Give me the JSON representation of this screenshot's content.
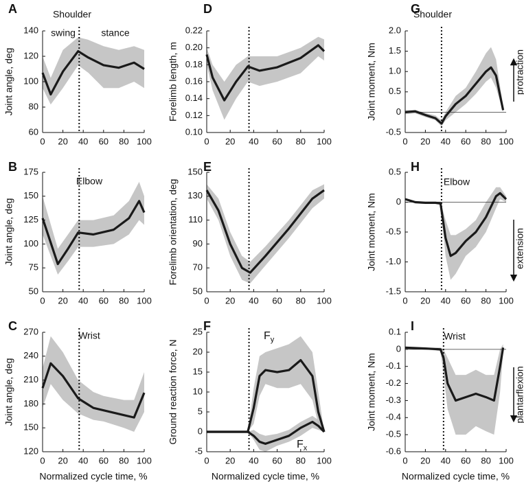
{
  "chart_data": [
    {
      "type": "line",
      "letter": "A",
      "title": "Shoulder",
      "ylabel": "Joint angle, deg",
      "xlim": [
        0,
        100
      ],
      "xticks": [
        0,
        20,
        40,
        60,
        80,
        100
      ],
      "ylim": [
        60,
        140
      ],
      "yticks": [
        60,
        80,
        100,
        120,
        140
      ],
      "marker_x": 36,
      "x": [
        0,
        8,
        20,
        35,
        45,
        60,
        75,
        90,
        100
      ],
      "series": [
        {
          "color": "#1a1a1a",
          "band_color": "#bcbcbc",
          "values": [
            107,
            90,
            108,
            124,
            119,
            113,
            111,
            115,
            110
          ],
          "lower": [
            95,
            82,
            95,
            113,
            107,
            95,
            95,
            100,
            95
          ],
          "upper": [
            120,
            103,
            125,
            135,
            133,
            128,
            125,
            128,
            125
          ]
        }
      ],
      "annotations": [
        "swing",
        "stance"
      ]
    },
    {
      "type": "line",
      "letter": "B",
      "title": "Elbow",
      "ylabel": "Joint angle, deg",
      "xlim": [
        0,
        100
      ],
      "xticks": [
        0,
        20,
        40,
        60,
        80,
        100
      ],
      "ylim": [
        50,
        175
      ],
      "yticks": [
        50,
        75,
        100,
        125,
        150,
        175
      ],
      "marker_x": 36,
      "x": [
        0,
        15,
        25,
        35,
        50,
        70,
        85,
        95,
        100
      ],
      "series": [
        {
          "color": "#1a1a1a",
          "band_color": "#bcbcbc",
          "values": [
            127,
            79,
            95,
            112,
            110,
            115,
            127,
            145,
            133
          ],
          "lower": [
            110,
            68,
            82,
            97,
            97,
            100,
            110,
            125,
            120
          ],
          "upper": [
            150,
            95,
            110,
            125,
            125,
            130,
            145,
            165,
            150
          ]
        }
      ]
    },
    {
      "type": "line",
      "letter": "C",
      "title": "Wrist",
      "ylabel": "Joint angle, deg",
      "xlabel": "Normalized cycle time, %",
      "xlim": [
        0,
        100
      ],
      "xticks": [
        0,
        20,
        40,
        60,
        80,
        100
      ],
      "ylim": [
        120,
        270
      ],
      "yticks": [
        120,
        150,
        180,
        210,
        240,
        270
      ],
      "marker_x": 36,
      "x": [
        0,
        8,
        20,
        35,
        50,
        60,
        80,
        90,
        100
      ],
      "series": [
        {
          "color": "#1a1a1a",
          "band_color": "#bcbcbc",
          "values": [
            200,
            231,
            215,
            187,
            175,
            172,
            166,
            163,
            194
          ],
          "lower": [
            175,
            205,
            185,
            168,
            160,
            158,
            150,
            145,
            170
          ],
          "upper": [
            225,
            265,
            245,
            210,
            195,
            190,
            185,
            185,
            220
          ]
        }
      ]
    },
    {
      "type": "line",
      "letter": "D",
      "ylabel": "Forelimb length, m",
      "xlim": [
        0,
        100
      ],
      "xticks": [
        0,
        20,
        40,
        60,
        80,
        100
      ],
      "ylim": [
        0.1,
        0.22
      ],
      "yticks": [
        {
          "value": 0.1,
          "label": "0.10"
        },
        0.12,
        0.14,
        0.16,
        0.18,
        {
          "value": 0.2,
          "label": "0.20"
        },
        0.22
      ],
      "marker_x": 36,
      "x": [
        0,
        5,
        15,
        25,
        35,
        45,
        60,
        80,
        95,
        100
      ],
      "series": [
        {
          "color": "#1a1a1a",
          "band_color": "#bcbcbc",
          "values": [
            0.192,
            0.165,
            0.138,
            0.16,
            0.178,
            0.173,
            0.177,
            0.188,
            0.203,
            0.196
          ],
          "lower": [
            0.18,
            0.15,
            0.115,
            0.14,
            0.16,
            0.155,
            0.16,
            0.17,
            0.19,
            0.185
          ],
          "upper": [
            0.2,
            0.18,
            0.16,
            0.18,
            0.19,
            0.19,
            0.19,
            0.2,
            0.213,
            0.21
          ]
        }
      ]
    },
    {
      "type": "line",
      "letter": "E",
      "ylabel": "Forelimb orientation, deg",
      "xlim": [
        0,
        100
      ],
      "xticks": [
        0,
        20,
        40,
        60,
        80,
        100
      ],
      "ylim": [
        50,
        150
      ],
      "yticks": [
        50,
        70,
        90,
        110,
        130,
        150
      ],
      "marker_x": 36,
      "x": [
        0,
        10,
        20,
        30,
        37,
        50,
        70,
        90,
        100
      ],
      "series": [
        {
          "color": "#1a1a1a",
          "band_color": "#bcbcbc",
          "values": [
            135,
            118,
            90,
            70,
            66,
            80,
            103,
            128,
            135
          ],
          "lower": [
            128,
            110,
            80,
            60,
            57,
            72,
            95,
            120,
            128
          ],
          "upper": [
            140,
            128,
            100,
            80,
            75,
            88,
            110,
            135,
            140
          ]
        }
      ]
    },
    {
      "type": "line",
      "letter": "F",
      "ylabel": "Ground reaction force, N",
      "xlabel": "Normalized cycle time, %",
      "xlim": [
        0,
        100
      ],
      "xticks": [
        0,
        20,
        40,
        60,
        80,
        100
      ],
      "ylim": [
        -5,
        25
      ],
      "yticks": [
        -5,
        0,
        5,
        10,
        15,
        20,
        25
      ],
      "marker_x": 36,
      "x": [
        0,
        35,
        40,
        45,
        50,
        60,
        70,
        80,
        90,
        95,
        100
      ],
      "series": [
        {
          "label": {
            "text": "F",
            "sub": "y"
          },
          "color": "#1a1a1a",
          "band_color": "#bcbcbc",
          "values": [
            0,
            0,
            6,
            14,
            15.5,
            15,
            15.5,
            18,
            14,
            5,
            0
          ],
          "lower": [
            0,
            0,
            2,
            9,
            12,
            11,
            11,
            12,
            8,
            2,
            0
          ],
          "upper": [
            0,
            0,
            11,
            19,
            20,
            21,
            22,
            24,
            20,
            10,
            0
          ]
        },
        {
          "label": {
            "text": "F",
            "sub": "x"
          },
          "color": "#1a1a1a",
          "band_color": "#bcbcbc",
          "values": [
            0,
            0,
            -1,
            -2.5,
            -3,
            -2,
            -1,
            1,
            2.5,
            1.5,
            0
          ],
          "lower": [
            0,
            0,
            -2,
            -4.5,
            -5,
            -3.5,
            -2.5,
            -1,
            1,
            0.5,
            0
          ],
          "upper": [
            0,
            0,
            0.5,
            -0.5,
            -1,
            -0.5,
            0.5,
            2.5,
            4,
            3,
            0
          ]
        }
      ]
    },
    {
      "type": "line",
      "letter": "G",
      "title": "Shoulder",
      "ylabel": "Joint moment, Nm",
      "xlim": [
        0,
        100
      ],
      "xticks": [
        0,
        20,
        40,
        60,
        80,
        100
      ],
      "ylim": [
        -0.5,
        2
      ],
      "yticks": [
        -0.5,
        0,
        0.5,
        {
          "value": 1,
          "label": "1.0"
        },
        1.5,
        {
          "value": 2,
          "label": "2.0"
        }
      ],
      "marker_x": 36,
      "zero_line": true,
      "arrow": "up",
      "x": [
        0,
        10,
        20,
        30,
        36,
        40,
        50,
        60,
        70,
        80,
        85,
        90,
        97
      ],
      "series": [
        {
          "color": "#1a1a1a",
          "band_color": "#bcbcbc",
          "values": [
            0,
            0.02,
            -0.07,
            -0.15,
            -0.28,
            -0.1,
            0.2,
            0.4,
            0.7,
            1.0,
            1.1,
            0.9,
            0.05
          ],
          "lower": [
            -0.05,
            -0.03,
            -0.12,
            -0.2,
            -0.35,
            -0.2,
            0,
            0.2,
            0.45,
            0.75,
            0.85,
            0.6,
            0
          ],
          "upper": [
            0.05,
            0.06,
            -0.02,
            -0.08,
            -0.2,
            0,
            0.4,
            0.6,
            1,
            1.45,
            1.6,
            1.3,
            0.15
          ]
        }
      ],
      "annotations": [
        "protraction"
      ]
    },
    {
      "type": "line",
      "letter": "H",
      "title": "Elbow",
      "ylabel": "Joint moment, Nm",
      "xlim": [
        0,
        100
      ],
      "xticks": [
        0,
        20,
        40,
        60,
        80,
        100
      ],
      "ylim": [
        -1.5,
        0.5
      ],
      "yticks": [
        -1.5,
        {
          "value": -1,
          "label": "-1.0"
        },
        -0.5,
        0,
        0.5
      ],
      "marker_x": 36,
      "zero_line": true,
      "arrow": "down",
      "x": [
        0,
        10,
        20,
        30,
        35,
        40,
        45,
        50,
        60,
        70,
        80,
        90,
        94,
        100
      ],
      "series": [
        {
          "color": "#1a1a1a",
          "band_color": "#bcbcbc",
          "values": [
            0.05,
            0,
            -0.01,
            -0.01,
            -0.02,
            -0.6,
            -0.9,
            -0.85,
            -0.65,
            -0.5,
            -0.25,
            0.1,
            0.15,
            0.05
          ],
          "lower": [
            0.03,
            -0.02,
            -0.03,
            -0.03,
            -0.05,
            -0.9,
            -1.3,
            -1.2,
            -0.9,
            -0.75,
            -0.5,
            -0.1,
            0.05,
            0
          ],
          "upper": [
            0.07,
            0.02,
            0.01,
            0.01,
            0.01,
            -0.3,
            -0.55,
            -0.55,
            -0.45,
            -0.3,
            0,
            0.25,
            0.25,
            0.1
          ]
        }
      ],
      "annotations": [
        "extension"
      ]
    },
    {
      "type": "line",
      "letter": "I",
      "title": "Wrist",
      "ylabel": "Joint moment, Nm",
      "xlabel": "Normalized cycle time, %",
      "xlim": [
        0,
        100
      ],
      "xticks": [
        0,
        20,
        40,
        60,
        80,
        100
      ],
      "ylim": [
        -0.6,
        0.1
      ],
      "yticks": [
        -0.6,
        -0.5,
        -0.4,
        -0.3,
        -0.2,
        -0.1,
        0,
        0.1
      ],
      "marker_x": 38,
      "zero_line": true,
      "arrow": "down",
      "x": [
        0,
        20,
        35,
        38,
        42,
        50,
        60,
        70,
        80,
        88,
        94,
        97
      ],
      "series": [
        {
          "color": "#1a1a1a",
          "band_color": "#bcbcbc",
          "values": [
            0.01,
            0.005,
            0,
            -0.05,
            -0.2,
            -0.3,
            -0.28,
            -0.26,
            -0.28,
            -0.3,
            -0.1,
            0.01
          ],
          "lower": [
            0,
            0,
            -0.01,
            -0.15,
            -0.35,
            -0.5,
            -0.5,
            -0.45,
            -0.48,
            -0.5,
            -0.25,
            -0.02
          ],
          "upper": [
            0.015,
            0.01,
            0.01,
            0,
            -0.05,
            -0.15,
            -0.15,
            -0.12,
            -0.15,
            -0.15,
            0,
            0.03
          ]
        }
      ],
      "annotations": [
        "plantarflexion"
      ]
    }
  ]
}
